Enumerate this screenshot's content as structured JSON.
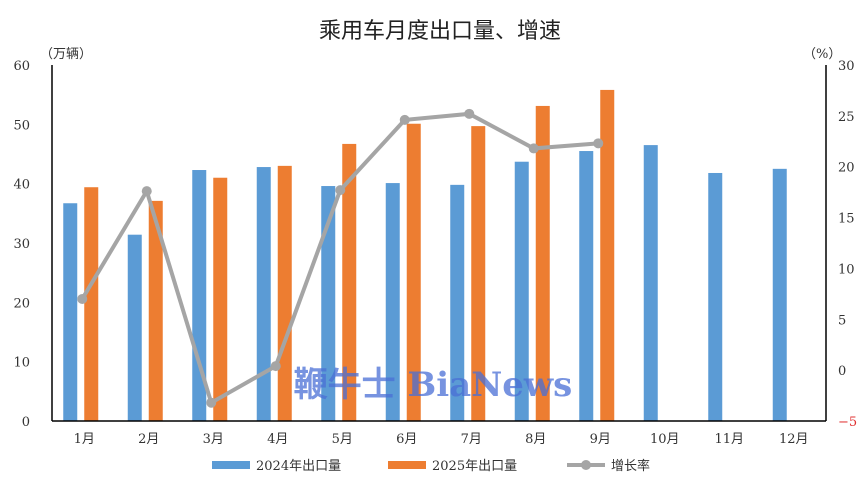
{
  "chart_data": {
    "type": "bar",
    "title": "乘用车月度出口量、增速",
    "ylabel_left": "（万辆）",
    "ylabel_right": "（%）",
    "categories": [
      "1月",
      "2月",
      "3月",
      "4月",
      "5月",
      "6月",
      "7月",
      "8月",
      "9月",
      "10月",
      "11月",
      "12月"
    ],
    "ylim_left": [
      0,
      60
    ],
    "yticks_left": [
      "0",
      "10",
      "20",
      "30",
      "40",
      "50",
      "60"
    ],
    "ylim_right": [
      -5,
      30
    ],
    "yticks_right": [
      "−5",
      "0",
      "5",
      "10",
      "15",
      "20",
      "25",
      "30"
    ],
    "series": [
      {
        "name": "2024年出口量",
        "type": "bar",
        "axis": "left",
        "color": "#5b9bd5",
        "values": [
          36.7,
          31.4,
          42.3,
          42.8,
          39.6,
          40.1,
          39.8,
          43.7,
          45.5,
          46.5,
          41.8,
          42.5
        ]
      },
      {
        "name": "2025年出口量",
        "type": "bar",
        "axis": "left",
        "color": "#ed7d31",
        "values": [
          39.4,
          37.1,
          41.0,
          43.0,
          46.7,
          50.1,
          49.7,
          53.1,
          55.8,
          null,
          null,
          null
        ]
      },
      {
        "name": "增长率",
        "type": "line",
        "axis": "right",
        "color": "#a5a5a5",
        "values": [
          7.0,
          17.6,
          -3.2,
          0.4,
          17.7,
          24.6,
          25.2,
          21.8,
          22.3,
          null,
          null,
          null
        ]
      }
    ],
    "negative_tick_color": "#e03030",
    "grid": false,
    "legend_position": "bottom",
    "watermark": "鞭牛士 BiaNews"
  }
}
